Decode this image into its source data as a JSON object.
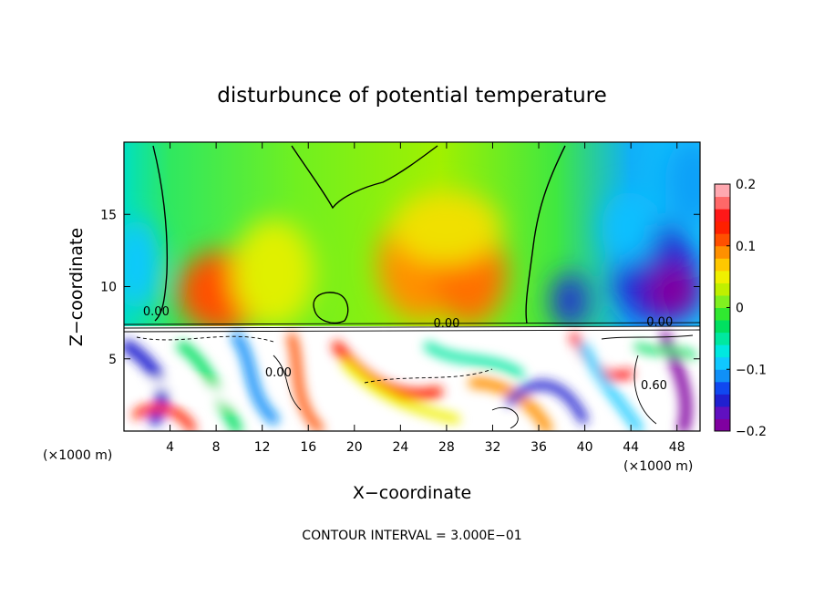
{
  "chart_data": {
    "type": "heatmap",
    "title": "disturbunce of potential temperature",
    "xlabel": "X−coordinate",
    "ylabel": "Z−coordinate",
    "x_unit_left": "(×1000 m)",
    "x_unit_right": "(×1000 m)",
    "footer": "CONTOUR INTERVAL = 3.000E−01",
    "xlim": [
      0,
      50
    ],
    "ylim": [
      0,
      20
    ],
    "x_ticks": [
      4,
      8,
      12,
      16,
      20,
      24,
      28,
      32,
      36,
      40,
      44,
      48
    ],
    "y_ticks": [
      5,
      10,
      15
    ],
    "colorbar": {
      "range": [
        -0.2,
        0.2
      ],
      "tick_values": [
        0.2,
        0.1,
        0,
        -0.1,
        -0.2
      ],
      "tick_labels": [
        "0.2",
        "0.1",
        "0",
        "−0.1",
        "−0.2"
      ],
      "colors": [
        "#8000a0",
        "#6010c0",
        "#2020d0",
        "#1048f0",
        "#1090f8",
        "#10c8ff",
        "#00e8e0",
        "#00e8a0",
        "#00e060",
        "#30e830",
        "#80f020",
        "#c0f000",
        "#f0f000",
        "#ffc800",
        "#ff9000",
        "#ff5000",
        "#ff2000",
        "#ff1818",
        "#ff6868",
        "#ffa8b0"
      ]
    },
    "contour_labels": [
      {
        "text": "0.00",
        "x": 2.8,
        "z": 8.0
      },
      {
        "text": "0.00",
        "x": 28.0,
        "z": 7.2
      },
      {
        "text": "0.00",
        "x": 46.5,
        "z": 7.3
      },
      {
        "text": "0.00",
        "x": 13.4,
        "z": 3.8
      },
      {
        "text": "0.60",
        "x": 46.0,
        "z": 2.9
      }
    ],
    "field": {
      "upper_layer_z": [
        7.2,
        20
      ],
      "warm_anomalies": [
        {
          "x": 8.5,
          "z": 9.5,
          "value": 0.17
        },
        {
          "x": 25.5,
          "z": 10.5,
          "value": 0.12
        },
        {
          "x": 29.5,
          "z": 10.0,
          "value": 0.13
        },
        {
          "x": 13.0,
          "z": 9.0,
          "value": 0.07
        }
      ],
      "cold_anomalies": [
        {
          "x": 46.5,
          "z": 10.5,
          "value": -0.2
        },
        {
          "x": 38.0,
          "z": 9.0,
          "value": -0.14
        },
        {
          "x": 1.0,
          "z": 12.0,
          "value": -0.07
        },
        {
          "x": 48.5,
          "z": 18.0,
          "value": -0.08
        }
      ]
    }
  }
}
